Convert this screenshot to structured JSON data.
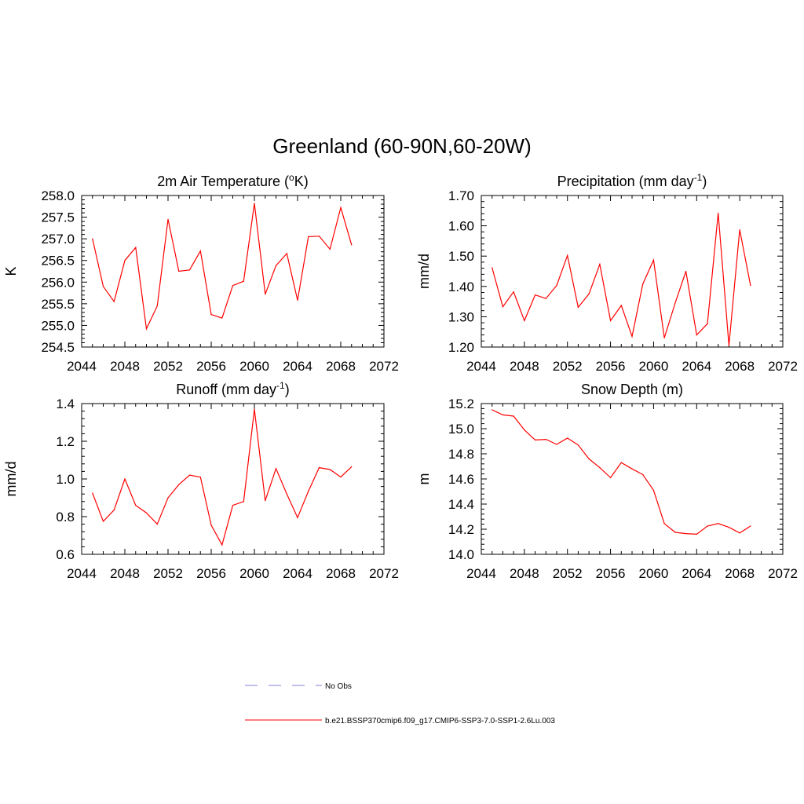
{
  "figure_title": "Greenland (60-90N,60-20W)",
  "chart_data": [
    {
      "type": "line",
      "title": "2m Air Temperature (",
      "title_sup": "o",
      "title_tail": "K)",
      "xlabel": "",
      "ylabel": "K",
      "xlim": [
        2044,
        2072
      ],
      "xticks": [
        2044,
        2048,
        2052,
        2056,
        2060,
        2064,
        2068,
        2072
      ],
      "xtick_labels": [
        "2044",
        "2048",
        "2052",
        "2056",
        "2060",
        "2064",
        "2068",
        "2072"
      ],
      "ylim": [
        254.5,
        258.0
      ],
      "yticks": [
        254.5,
        255.0,
        255.5,
        256.0,
        256.5,
        257.0,
        257.5,
        258.0
      ],
      "ytick_labels": [
        "254.5",
        "255.0",
        "255.5",
        "256.0",
        "256.5",
        "257.0",
        "257.5",
        "258.0"
      ],
      "series": [
        {
          "name": "b.e21.BSSP370cmip6.f09_g17.CMIP6-SSP3-7.0-SSP1-2.6Lu.003",
          "color": "#ff0000",
          "x": [
            2045,
            2046,
            2047,
            2048,
            2049,
            2050,
            2051,
            2052,
            2053,
            2054,
            2055,
            2056,
            2057,
            2058,
            2059,
            2060,
            2061,
            2062,
            2063,
            2064,
            2065,
            2066,
            2067,
            2068,
            2069
          ],
          "y": [
            257.0,
            255.9,
            255.55,
            256.5,
            256.8,
            254.92,
            255.45,
            257.45,
            256.25,
            256.28,
            256.72,
            255.25,
            255.17,
            255.92,
            256.02,
            257.82,
            255.72,
            256.38,
            256.66,
            255.58,
            257.05,
            257.06,
            256.76,
            257.72,
            256.86
          ]
        }
      ]
    },
    {
      "type": "line",
      "title": "Precipitation (mm day",
      "title_sup": "-1",
      "title_tail": ")",
      "xlabel": "",
      "ylabel": "mm/d",
      "xlim": [
        2044,
        2072
      ],
      "xticks": [
        2044,
        2048,
        2052,
        2056,
        2060,
        2064,
        2068,
        2072
      ],
      "xtick_labels": [
        "2044",
        "2048",
        "2052",
        "2056",
        "2060",
        "2064",
        "2068",
        "2072"
      ],
      "ylim": [
        1.2,
        1.7
      ],
      "yticks": [
        1.2,
        1.3,
        1.4,
        1.5,
        1.6,
        1.7
      ],
      "ytick_labels": [
        "1.20",
        "1.30",
        "1.40",
        "1.50",
        "1.60",
        "1.70"
      ],
      "series": [
        {
          "name": "b.e21.BSSP370cmip6.f09_g17.CMIP6-SSP3-7.0-SSP1-2.6Lu.003",
          "color": "#ff0000",
          "x": [
            2045,
            2046,
            2047,
            2048,
            2049,
            2050,
            2051,
            2052,
            2053,
            2054,
            2055,
            2056,
            2057,
            2058,
            2059,
            2060,
            2061,
            2062,
            2063,
            2064,
            2065,
            2066,
            2067,
            2068,
            2069
          ],
          "y": [
            1.462,
            1.333,
            1.382,
            1.287,
            1.372,
            1.36,
            1.403,
            1.502,
            1.331,
            1.375,
            1.473,
            1.287,
            1.337,
            1.235,
            1.408,
            1.487,
            1.23,
            1.345,
            1.45,
            1.24,
            1.277,
            1.642,
            1.205,
            1.587,
            1.403
          ]
        }
      ]
    },
    {
      "type": "line",
      "title": "Runoff (mm day",
      "title_sup": "-1",
      "title_tail": ")",
      "xlabel": "",
      "ylabel": "mm/d",
      "xlim": [
        2044,
        2072
      ],
      "xticks": [
        2044,
        2048,
        2052,
        2056,
        2060,
        2064,
        2068,
        2072
      ],
      "xtick_labels": [
        "2044",
        "2048",
        "2052",
        "2056",
        "2060",
        "2064",
        "2068",
        "2072"
      ],
      "ylim": [
        0.6,
        1.4
      ],
      "yticks": [
        0.6,
        0.8,
        1.0,
        1.2,
        1.4
      ],
      "ytick_labels": [
        "0.6",
        "0.8",
        "1.0",
        "1.2",
        "1.4"
      ],
      "series": [
        {
          "name": "b.e21.BSSP370cmip6.f09_g17.CMIP6-SSP3-7.0-SSP1-2.6Lu.003",
          "color": "#ff0000",
          "x": [
            2045,
            2046,
            2047,
            2048,
            2049,
            2050,
            2051,
            2052,
            2053,
            2054,
            2055,
            2056,
            2057,
            2058,
            2059,
            2060,
            2061,
            2062,
            2063,
            2064,
            2065,
            2066,
            2067,
            2068,
            2069
          ],
          "y": [
            0.925,
            0.775,
            0.835,
            1.0,
            0.86,
            0.82,
            0.76,
            0.9,
            0.97,
            1.02,
            1.01,
            0.755,
            0.65,
            0.86,
            0.88,
            1.37,
            0.885,
            1.055,
            0.92,
            0.795,
            0.935,
            1.06,
            1.05,
            1.01,
            1.065
          ]
        }
      ]
    },
    {
      "type": "line",
      "title": "Snow Depth (m)",
      "title_sup": "",
      "title_tail": "",
      "xlabel": "",
      "ylabel": "m",
      "xlim": [
        2044,
        2072
      ],
      "xticks": [
        2044,
        2048,
        2052,
        2056,
        2060,
        2064,
        2068,
        2072
      ],
      "xtick_labels": [
        "2044",
        "2048",
        "2052",
        "2056",
        "2060",
        "2064",
        "2068",
        "2072"
      ],
      "ylim": [
        14.0,
        15.2
      ],
      "yticks": [
        14.0,
        14.2,
        14.4,
        14.6,
        14.8,
        15.0,
        15.2
      ],
      "ytick_labels": [
        "14.0",
        "14.2",
        "14.4",
        "14.6",
        "14.8",
        "15.0",
        "15.2"
      ],
      "series": [
        {
          "name": "b.e21.BSSP370cmip6.f09_g17.CMIP6-SSP3-7.0-SSP1-2.6Lu.003",
          "color": "#ff0000",
          "x": [
            2045,
            2046,
            2047,
            2048,
            2049,
            2050,
            2051,
            2052,
            2053,
            2054,
            2055,
            2056,
            2057,
            2058,
            2059,
            2060,
            2061,
            2062,
            2063,
            2064,
            2065,
            2066,
            2067,
            2068,
            2069
          ],
          "y": [
            15.15,
            15.11,
            15.1,
            14.99,
            14.91,
            14.915,
            14.875,
            14.925,
            14.87,
            14.76,
            14.69,
            14.61,
            14.73,
            14.68,
            14.635,
            14.51,
            14.245,
            14.175,
            14.165,
            14.16,
            14.225,
            14.245,
            14.215,
            14.17,
            14.225
          ]
        }
      ]
    }
  ],
  "legend": [
    {
      "label": "No Obs",
      "color": "#9999dd",
      "style": "dashed"
    },
    {
      "label": "b.e21.BSSP370cmip6.f09_g17.CMIP6-SSP3-7.0-SSP1-2.6Lu.003",
      "color": "#ff0000",
      "style": "solid"
    }
  ]
}
